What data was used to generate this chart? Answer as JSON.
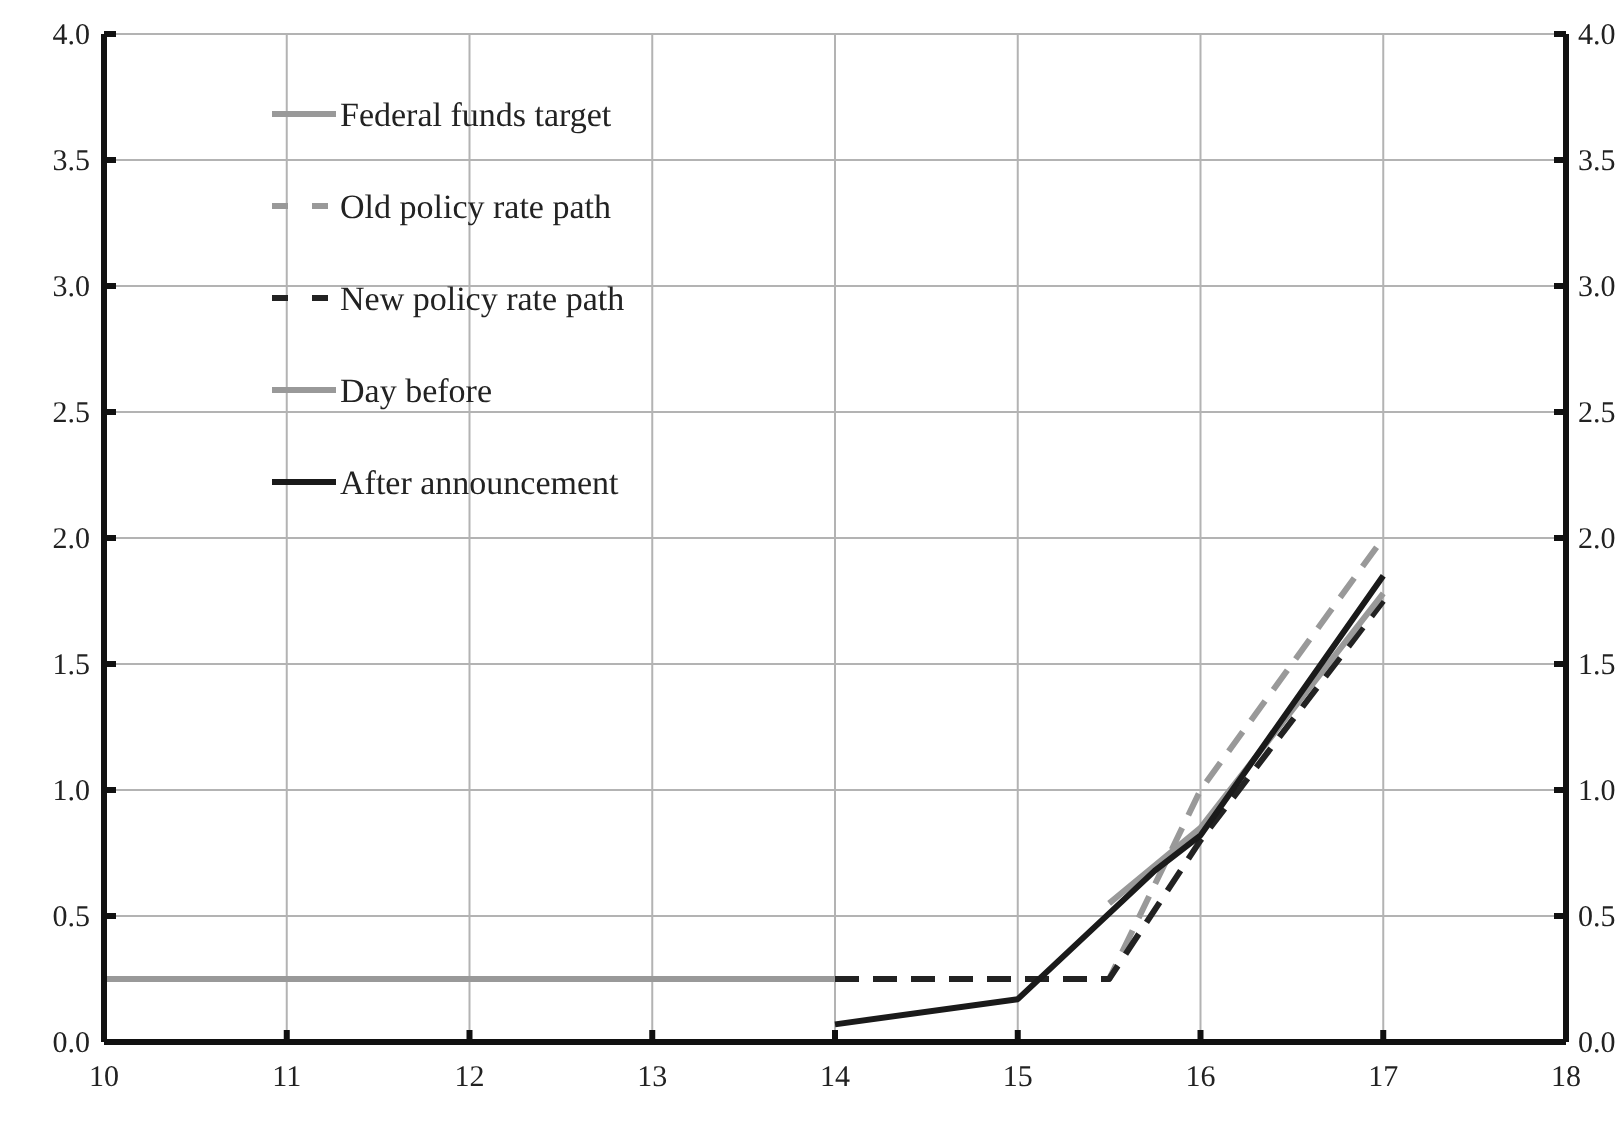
{
  "chart_data": {
    "type": "line",
    "xlim": [
      10,
      18
    ],
    "xticks": [
      10,
      11,
      12,
      13,
      14,
      15,
      16,
      17,
      18
    ],
    "ylim": [
      0,
      4
    ],
    "yticks": [
      {
        "value": 0,
        "label": "0.0"
      },
      {
        "value": 0.5,
        "label": "0.5"
      },
      {
        "value": 1,
        "label": "1.0"
      },
      {
        "value": 1.5,
        "label": "1.5"
      },
      {
        "value": 2,
        "label": "2.0"
      },
      {
        "value": 2.5,
        "label": "2.5"
      },
      {
        "value": 3,
        "label": "3.0"
      },
      {
        "value": 3.5,
        "label": "3.5"
      },
      {
        "value": 4,
        "label": "4.0"
      }
    ],
    "y2lim": [
      0,
      4
    ],
    "y2ticks": [
      {
        "value": 0,
        "label": "0.0"
      },
      {
        "value": 0.5,
        "label": "0.5"
      },
      {
        "value": 1,
        "label": "1.0"
      },
      {
        "value": 1.5,
        "label": "1.5"
      },
      {
        "value": 2,
        "label": "2.0"
      },
      {
        "value": 2.5,
        "label": "2.5"
      },
      {
        "value": 3,
        "label": "3.0"
      },
      {
        "value": 3.5,
        "label": "3.5"
      },
      {
        "value": 4,
        "label": "4.0"
      }
    ],
    "grid": true,
    "legend": "top left",
    "series": [
      {
        "name": "Federal funds target",
        "color": "#999999",
        "line_style": "solid",
        "x": [
          10,
          14
        ],
        "values": [
          0.25,
          0.25
        ]
      },
      {
        "name": "Old policy rate path",
        "color": "#999999",
        "line_style": "dashed",
        "x": [
          14,
          15.5,
          16,
          17
        ],
        "values": [
          0.25,
          0.25,
          1.0,
          2.0
        ]
      },
      {
        "name": "New policy rate path",
        "color": "#222222",
        "line_style": "dashed",
        "x": [
          14,
          15.5,
          16,
          17
        ],
        "values": [
          0.25,
          0.25,
          0.8,
          1.75
        ]
      },
      {
        "name": "Day before",
        "color": "#999999",
        "line_style": "solid",
        "x": [
          15.5,
          16,
          17
        ],
        "values": [
          0.55,
          0.85,
          1.78
        ]
      },
      {
        "name": "After announcement",
        "color": "#1a1a1a",
        "line_style": "solid",
        "x": [
          14,
          15,
          15.75,
          16,
          17
        ],
        "values": [
          0.07,
          0.17,
          0.68,
          0.82,
          1.85
        ]
      }
    ]
  }
}
